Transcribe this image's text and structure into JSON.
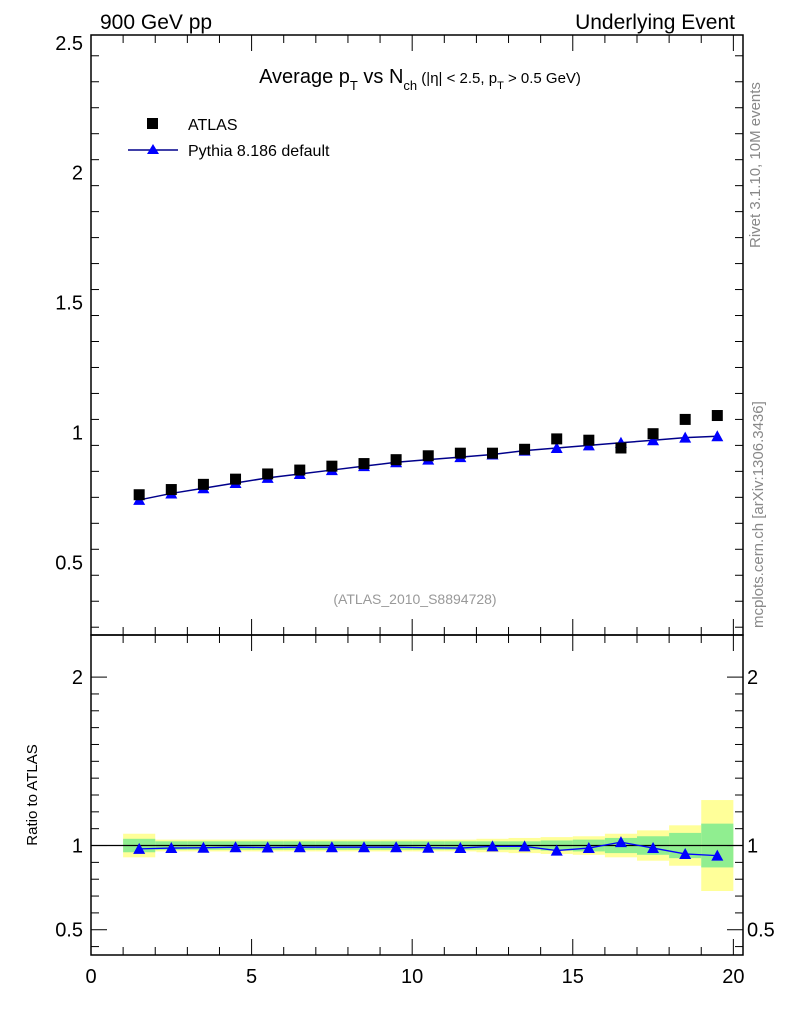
{
  "header": {
    "left": "900 GeV pp",
    "right": "Underlying Event"
  },
  "title": {
    "main": "Average p",
    "main_sub": "T",
    "vs": " vs N",
    "vs_sub": "ch",
    "cond_1": " (|η| < 2.5, p",
    "cond_sub": "T",
    "cond_2": " > 0.5 GeV)"
  },
  "side_labels": {
    "rivet": "Rivet 3.1.10,  10M events",
    "mcplots": "mcplots.cern.ch [arXiv:1306.3436]"
  },
  "analysis_id": "(ATLAS_2010_S8894728)",
  "colors": {
    "data": "#000000",
    "mc": "#0000ff",
    "mc_line": "#00008b",
    "band_inner": "#90ee90",
    "band_outer": "#ffff99",
    "side_text": "#888888"
  },
  "chart_data": [
    {
      "type": "scatter",
      "panel": "main",
      "xlim": [
        0,
        20.3
      ],
      "ylim": [
        0.22,
        2.53
      ],
      "yticks": [
        0.5,
        1,
        1.5,
        2,
        2.5
      ],
      "ytick_labels": [
        "0.5",
        "1",
        "1.5",
        "2",
        "2.5"
      ],
      "legend": {
        "placement": "top-left",
        "entries": [
          "ATLAS",
          "Pythia 8.186 default"
        ]
      },
      "series": [
        {
          "name": "ATLAS",
          "marker": "square",
          "x": [
            1.5,
            2.5,
            3.5,
            4.5,
            5.5,
            6.5,
            7.5,
            8.5,
            9.5,
            10.5,
            11.5,
            12.5,
            13.5,
            14.5,
            15.5,
            16.5,
            17.5,
            18.5,
            19.5
          ],
          "values": [
            0.76,
            0.78,
            0.8,
            0.82,
            0.84,
            0.855,
            0.87,
            0.88,
            0.895,
            0.91,
            0.92,
            0.92,
            0.935,
            0.975,
            0.97,
            0.94,
            0.995,
            1.05,
            1.065
          ]
        },
        {
          "name": "Pythia 8.186 default",
          "marker": "triangle",
          "x": [
            1.5,
            2.5,
            3.5,
            4.5,
            5.5,
            6.5,
            7.5,
            8.5,
            9.5,
            10.5,
            11.5,
            12.5,
            13.5,
            14.5,
            15.5,
            16.5,
            17.5,
            18.5,
            19.5
          ],
          "values": [
            0.74,
            0.765,
            0.785,
            0.805,
            0.825,
            0.84,
            0.855,
            0.87,
            0.885,
            0.895,
            0.905,
            0.915,
            0.93,
            0.94,
            0.95,
            0.96,
            0.97,
            0.98,
            0.985
          ]
        }
      ]
    },
    {
      "type": "line",
      "panel": "ratio",
      "ylabel": "Ratio to ATLAS",
      "xlim": [
        0,
        20.3
      ],
      "ylim": [
        0.35,
        2.25
      ],
      "xticks": [
        0,
        5,
        10,
        15,
        20
      ],
      "xtick_labels": [
        "0",
        "5",
        "10",
        "15",
        "20"
      ],
      "yticks": [
        0.5,
        1,
        2
      ],
      "ytick_labels": [
        "0.5",
        "1",
        "2"
      ],
      "reference": 1,
      "bins": [
        [
          1,
          2
        ],
        [
          2,
          3
        ],
        [
          3,
          4
        ],
        [
          4,
          5
        ],
        [
          5,
          6
        ],
        [
          6,
          7
        ],
        [
          7,
          8
        ],
        [
          8,
          9
        ],
        [
          9,
          10
        ],
        [
          10,
          11
        ],
        [
          11,
          12
        ],
        [
          12,
          13
        ],
        [
          13,
          14
        ],
        [
          14,
          15
        ],
        [
          15,
          16
        ],
        [
          16,
          17
        ],
        [
          17,
          18
        ],
        [
          18,
          19
        ],
        [
          19,
          20
        ]
      ],
      "band_inner": [
        [
          0.96,
          1.04
        ],
        [
          0.975,
          1.025
        ],
        [
          0.975,
          1.025
        ],
        [
          0.975,
          1.025
        ],
        [
          0.975,
          1.025
        ],
        [
          0.975,
          1.025
        ],
        [
          0.975,
          1.025
        ],
        [
          0.975,
          1.025
        ],
        [
          0.975,
          1.025
        ],
        [
          0.975,
          1.025
        ],
        [
          0.975,
          1.025
        ],
        [
          0.975,
          1.025
        ],
        [
          0.975,
          1.025
        ],
        [
          0.97,
          1.03
        ],
        [
          0.965,
          1.035
        ],
        [
          0.955,
          1.045
        ],
        [
          0.945,
          1.055
        ],
        [
          0.925,
          1.075
        ],
        [
          0.87,
          1.13
        ]
      ],
      "band_outer": [
        [
          0.93,
          1.07
        ],
        [
          0.965,
          1.035
        ],
        [
          0.965,
          1.035
        ],
        [
          0.965,
          1.035
        ],
        [
          0.965,
          1.035
        ],
        [
          0.965,
          1.035
        ],
        [
          0.965,
          1.035
        ],
        [
          0.965,
          1.035
        ],
        [
          0.965,
          1.035
        ],
        [
          0.965,
          1.035
        ],
        [
          0.965,
          1.035
        ],
        [
          0.96,
          1.04
        ],
        [
          0.955,
          1.045
        ],
        [
          0.95,
          1.05
        ],
        [
          0.945,
          1.055
        ],
        [
          0.93,
          1.07
        ],
        [
          0.91,
          1.09
        ],
        [
          0.88,
          1.12
        ],
        [
          0.73,
          1.27
        ]
      ],
      "series": [
        {
          "name": "Pythia 8.186 default",
          "x": [
            1.5,
            2.5,
            3.5,
            4.5,
            5.5,
            6.5,
            7.5,
            8.5,
            9.5,
            10.5,
            11.5,
            12.5,
            13.5,
            14.5,
            15.5,
            16.5,
            17.5,
            18.5,
            19.5
          ],
          "values": [
            0.98,
            0.985,
            0.987,
            0.99,
            0.988,
            0.99,
            0.99,
            0.99,
            0.99,
            0.987,
            0.985,
            0.995,
            0.995,
            0.97,
            0.985,
            1.02,
            0.985,
            0.95,
            0.94
          ]
        }
      ]
    }
  ]
}
